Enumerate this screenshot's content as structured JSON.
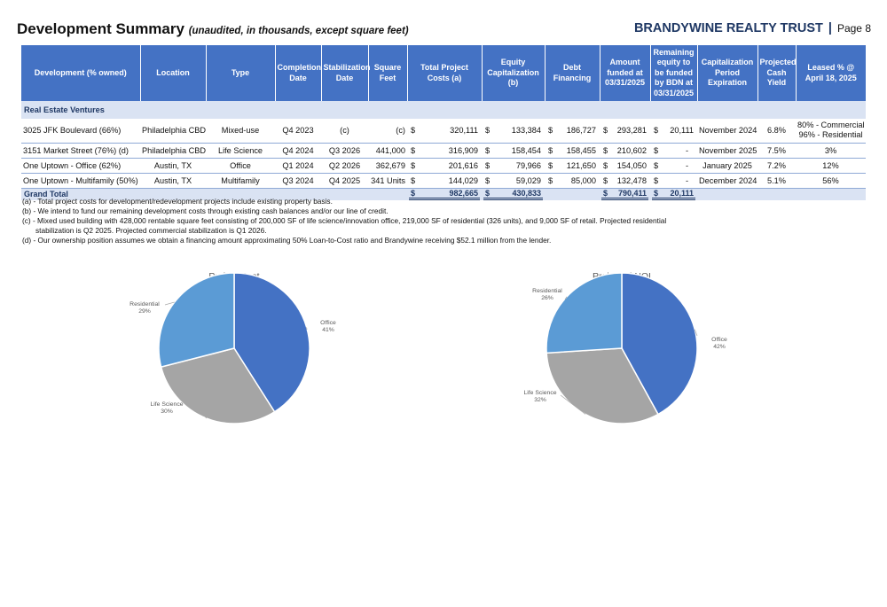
{
  "header": {
    "title": "Development Summary",
    "subtitle": "(unaudited, in thousands, except square feet)",
    "company": "BRANDYWINE REALTY TRUST",
    "separator": "|",
    "page": "Page 8"
  },
  "table": {
    "columns": [
      "Development (% owned)",
      "Location",
      "Type",
      "Completion Date",
      "Stabilization Date",
      "Square Feet",
      "Total Project Costs (a)",
      "Equity Capitalization (b)",
      "Debt Financing",
      "Amount funded at 03/31/2025",
      "Remaining equity to be funded by BDN at 03/31/2025",
      "Capitalization Period Expiration",
      "Projected Cash Yield",
      "Leased % @ April 18, 2025"
    ],
    "section": "Real Estate Ventures",
    "rows": [
      {
        "name": "3025 JFK Boulevard (66%)",
        "location": "Philadelphia CBD",
        "type": "Mixed-use",
        "completion": "Q4 2023",
        "stabilization": "(c)",
        "sqft": "(c)",
        "cost_sym": "$",
        "cost": "320,111",
        "equity_sym": "$",
        "equity": "133,384",
        "debt_sym": "$",
        "debt": "186,727",
        "funded_sym": "$",
        "funded": "293,281",
        "remaining_sym": "$",
        "remaining": "20,111",
        "cap_exp": "November 2024",
        "yield": "6.8%",
        "leased_line1": "80% - Commercial",
        "leased_line2": "96% - Residential"
      },
      {
        "name": "3151 Market Street (76%) (d)",
        "location": "Philadelphia CBD",
        "type": "Life Science",
        "completion": "Q4 2024",
        "stabilization": "Q3 2026",
        "sqft": "441,000",
        "cost_sym": "$",
        "cost": "316,909",
        "equity_sym": "$",
        "equity": "158,454",
        "debt_sym": "$",
        "debt": "158,455",
        "funded_sym": "$",
        "funded": "210,602",
        "remaining_sym": "$",
        "remaining": "-",
        "cap_exp": "November 2025",
        "yield": "7.5%",
        "leased": "3%"
      },
      {
        "name": "One Uptown - Office (62%)",
        "location": "Austin, TX",
        "type": "Office",
        "completion": "Q1 2024",
        "stabilization": "Q2 2026",
        "sqft": "362,679",
        "cost_sym": "$",
        "cost": "201,616",
        "equity_sym": "$",
        "equity": "79,966",
        "debt_sym": "$",
        "debt": "121,650",
        "funded_sym": "$",
        "funded": "154,050",
        "remaining_sym": "$",
        "remaining": "-",
        "cap_exp": "January 2025",
        "yield": "7.2%",
        "leased": "12%"
      },
      {
        "name": "One Uptown - Multifamily (50%)",
        "location": "Austin, TX",
        "type": "Multifamily",
        "completion": "Q3 2024",
        "stabilization": "Q4 2025",
        "sqft": "341 Units",
        "cost_sym": "$",
        "cost": "144,029",
        "equity_sym": "$",
        "equity": "59,029",
        "debt_sym": "$",
        "debt": "85,000",
        "funded_sym": "$",
        "funded": "132,478",
        "remaining_sym": "$",
        "remaining": "-",
        "cap_exp": "December 2024",
        "yield": "5.1%",
        "leased": "56%"
      }
    ],
    "grand_total": {
      "label": "Grand Total",
      "cost_sym": "$",
      "cost": "982,665",
      "equity_sym": "$",
      "equity": "430,833",
      "funded_sym": "$",
      "funded": "790,411",
      "remaining_sym": "$",
      "remaining": "20,111"
    }
  },
  "notes": [
    "(a) - Total project costs for development/redevelopment projects include existing property basis.",
    "(b) - We intend to fund our remaining development costs through existing cash balances and/or our line of credit.",
    "(c) - Mixed used building with 428,000 rentable square feet consisting of 200,000 SF of life science/innovation office, 219,000 SF of residential (326 units), and 9,000 SF of retail. Projected residential",
    "stabilization is Q2 2025. Projected commercial stabilization is Q1 2026.",
    "(d) - Our ownership position assumes we obtain a financing amount approximating 50% Loan-to-Cost ratio and Brandywine receiving $52.1 million from the lender."
  ],
  "colors": {
    "header_blue": "#4472c4",
    "band_blue": "#dae3f3",
    "navy": "#1f3864",
    "office": "#4472c4",
    "life_science": "#a5a5a5",
    "residential": "#5b9bd5"
  },
  "chart_data": [
    {
      "type": "pie",
      "title": "Project Cost",
      "slices": [
        {
          "label": "Office",
          "value": 41,
          "pct_label": "41%",
          "color": "#4472c4"
        },
        {
          "label": "Life Science",
          "value": 30,
          "pct_label": "30%",
          "color": "#a5a5a5"
        },
        {
          "label": "Residential",
          "value": 29,
          "pct_label": "29%",
          "color": "#5b9bd5"
        }
      ]
    },
    {
      "type": "pie",
      "title": "Projected NOI",
      "slices": [
        {
          "label": "Office",
          "value": 42,
          "pct_label": "42%",
          "color": "#4472c4"
        },
        {
          "label": "Life Science",
          "value": 32,
          "pct_label": "32%",
          "color": "#a5a5a5"
        },
        {
          "label": "Residential",
          "value": 26,
          "pct_label": "26%",
          "color": "#5b9bd5"
        }
      ]
    }
  ]
}
